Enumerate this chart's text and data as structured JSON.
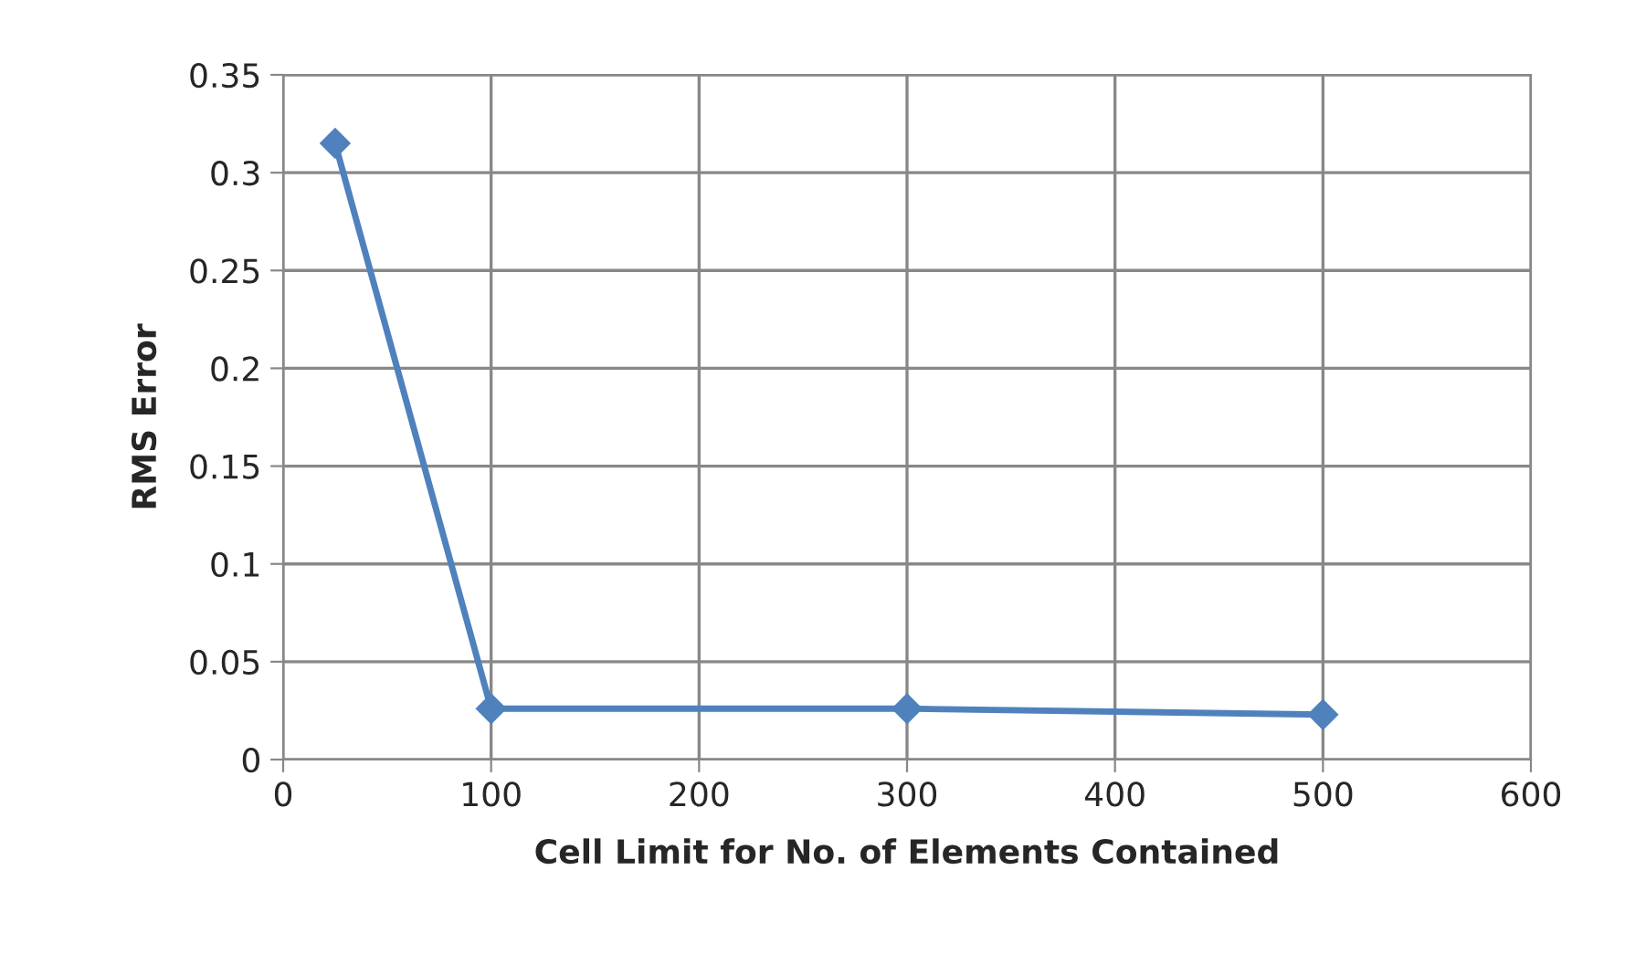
{
  "chart_data": {
    "type": "line",
    "xlabel": "Cell Limit for No. of Elements Contained",
    "ylabel": "RMS Error",
    "x": [
      25,
      100,
      300,
      500
    ],
    "series": [
      {
        "color": "#4f81bd",
        "values": [
          0.315,
          0.026,
          0.026,
          0.023
        ]
      }
    ],
    "xlim": [
      0,
      600
    ],
    "xticks": [
      0,
      100,
      200,
      300,
      400,
      500,
      600
    ],
    "ylim": [
      0,
      0.35
    ],
    "yticks": [
      0,
      0.05,
      0.1,
      0.15,
      0.2,
      0.25,
      0.3,
      0.35
    ],
    "grid": true,
    "legend": false,
    "marker": "diamond",
    "line_style": "solid"
  }
}
